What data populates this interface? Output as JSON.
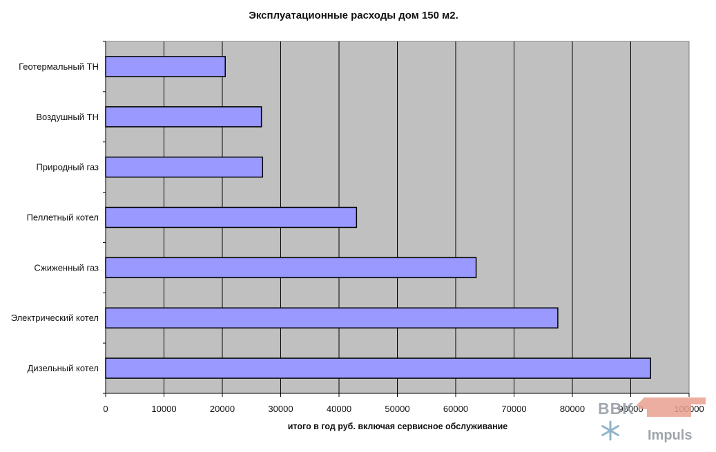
{
  "chart_data": {
    "type": "bar",
    "orientation": "horizontal",
    "title": "Эксплуатационные расходы дом 150 м2.",
    "xlabel": "итого в год руб. включая сервисное обслуживание",
    "ylabel": "",
    "categories": [
      "Геотермальный ТН",
      "Воздушный ТН",
      "Природный газ",
      "Пеллетный котел",
      "Сжиженный газ",
      "Электрический котел",
      "Дизельный котел"
    ],
    "values": [
      20500,
      26700,
      26900,
      43000,
      63500,
      77500,
      93400
    ],
    "xlim": [
      0,
      100000
    ],
    "xticks": [
      "0",
      "10000",
      "20000",
      "30000",
      "40000",
      "50000",
      "60000",
      "70000",
      "80000",
      "90000",
      "100000"
    ],
    "grid": "vertical",
    "colors": {
      "plot_background": "#c0c0c0",
      "bar_fill": "#9999ff",
      "bar_stroke": "#000000",
      "gridline": "#000000"
    }
  },
  "watermark": {
    "top_text": "BBK",
    "bottom_text": "Impuls",
    "icon": "snowflake-icon",
    "colors": {
      "red": "#e8a090",
      "blue": "#88b0c8",
      "gray": "#9aa0a8"
    }
  }
}
